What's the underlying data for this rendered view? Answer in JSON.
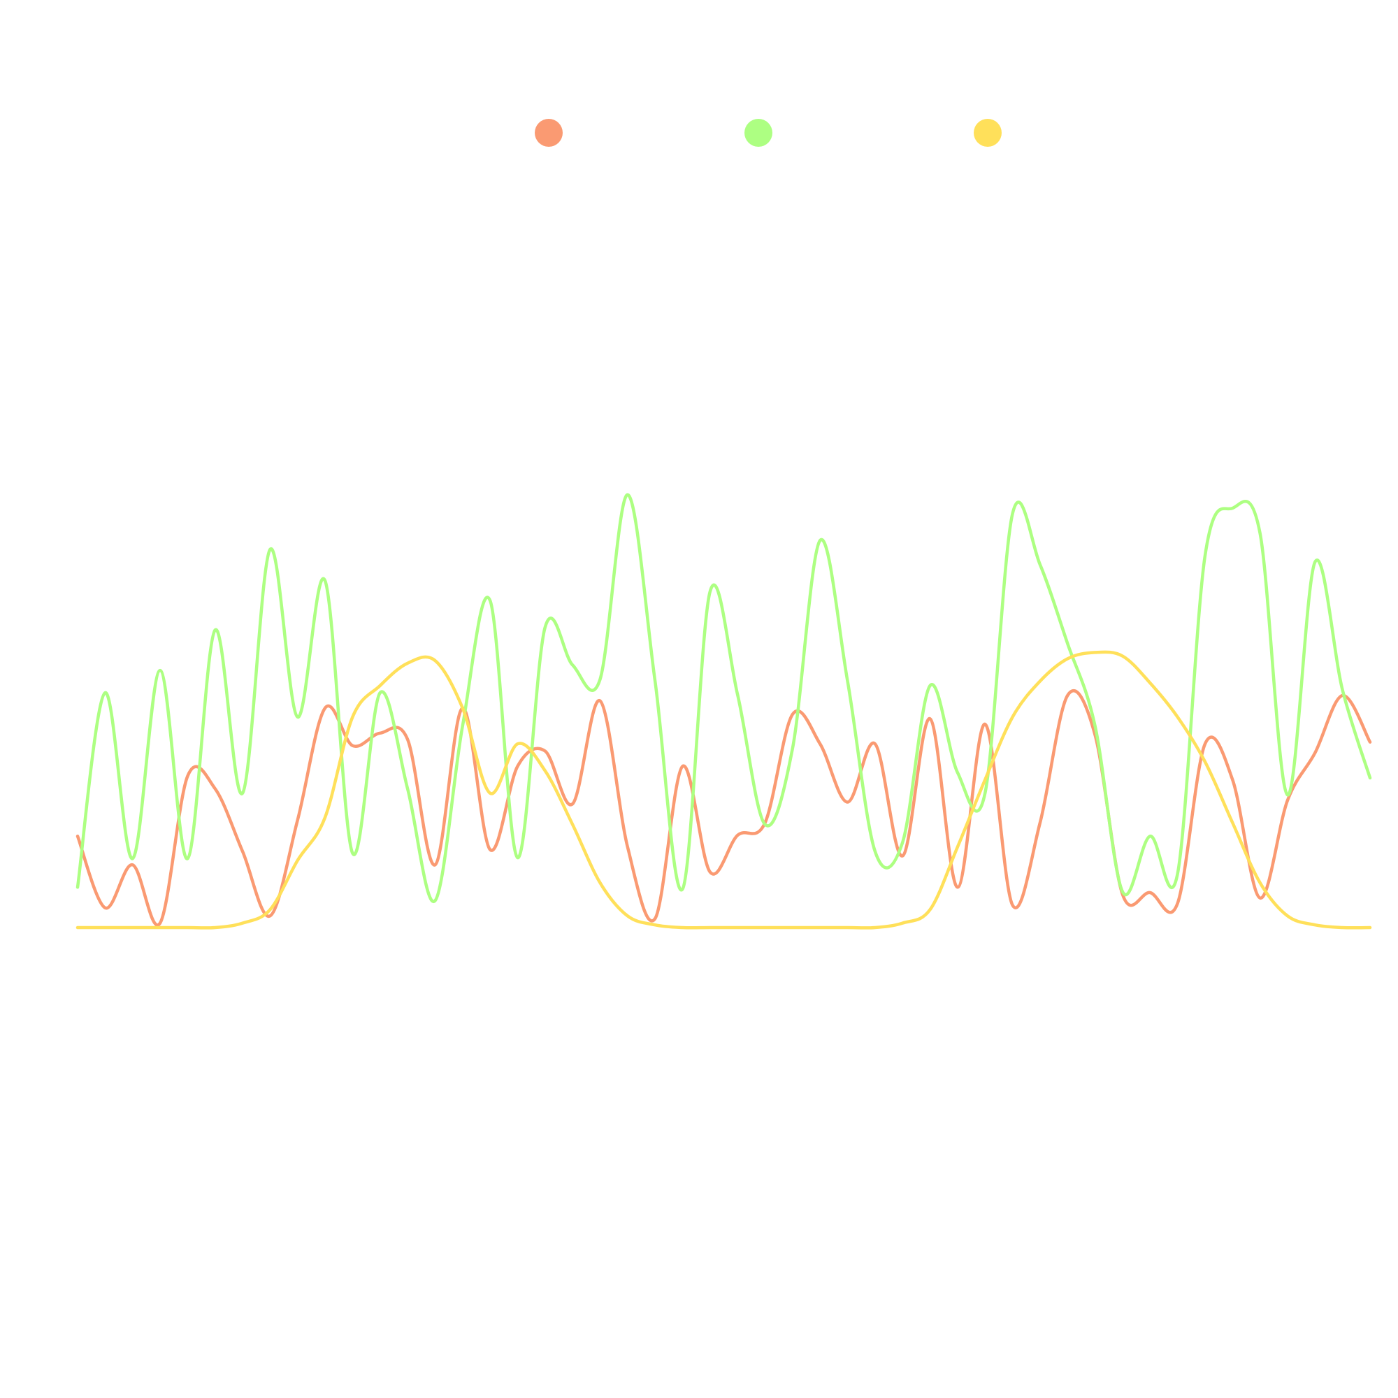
{
  "chart_data": {
    "type": "line",
    "categories": [
      null,
      null,
      null,
      null,
      null,
      null,
      null,
      null,
      null,
      null,
      null,
      null,
      null,
      null,
      null,
      null,
      null,
      null,
      null,
      null,
      null,
      null,
      null,
      null,
      null,
      null,
      null,
      null,
      null,
      null,
      null,
      null,
      null,
      null,
      null,
      null,
      null,
      null,
      null,
      null,
      null,
      null,
      null,
      null,
      null,
      null,
      null,
      null
    ],
    "ylim": [
      0,
      100
    ],
    "grid": false,
    "legend": "top",
    "series": [
      {
        "color": "#fa9a72",
        "values": [
          20.4,
          4.4,
          14,
          1,
          33.8,
          31,
          17,
          2.6,
          24,
          49,
          40.6,
          43.4,
          42,
          14,
          49,
          17.4,
          36,
          39.4,
          27.6,
          50.6,
          18,
          2,
          36,
          12.4,
          20.6,
          23.4,
          47.6,
          41,
          28,
          41,
          16,
          46.6,
          9,
          45.4,
          5,
          23.4,
          51.8,
          43,
          7.4,
          7.8,
          5.4,
          41,
          33,
          6.6,
          28.4,
          39,
          51.8,
          41.4
        ]
      },
      {
        "color": "#adff82",
        "values": [
          9,
          52.4,
          15.4,
          57.4,
          15.4,
          66.4,
          30,
          84.4,
          47,
          77.4,
          16.6,
          52.4,
          31,
          6,
          45,
          73,
          15.6,
          67,
          58.6,
          55.4,
          96.6,
          55,
          8.6,
          75,
          52,
          23,
          40,
          86.4,
          55,
          17,
          19,
          54,
          34.6,
          30,
          92.4,
          81,
          63.4,
          45,
          8,
          20.4,
          12,
          83,
          93.6,
          88,
          29.6,
          81.6,
          53,
          33.4
        ]
      },
      {
        "color": "#ffe05a",
        "values": [
          0,
          0,
          0,
          0,
          0,
          0,
          1,
          4,
          15,
          24.6,
          47,
          54,
          59,
          59.6,
          49,
          30,
          41,
          35,
          23,
          10,
          2.6,
          0.6,
          0,
          0,
          0,
          0,
          0,
          0,
          0,
          0,
          1,
          4,
          18,
          33,
          47,
          55,
          60,
          61.4,
          60.6,
          54.6,
          47,
          37,
          23.4,
          10,
          2.6,
          0.6,
          0,
          0
        ]
      }
    ]
  }
}
